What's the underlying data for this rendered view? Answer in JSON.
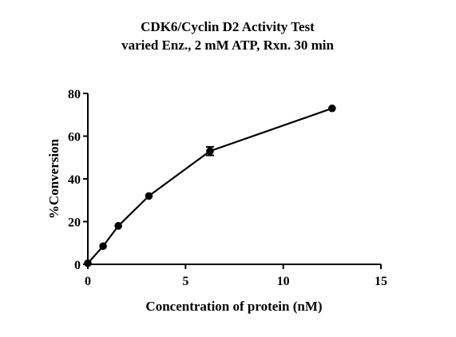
{
  "chart_data": {
    "type": "line",
    "title": "CDK6/Cyclin D2 Activity Test",
    "subtitle": "varied Enz., 2 mM ATP, Rxn. 30 min",
    "xlabel": "Concentration of protein (nM)",
    "ylabel": "%Conversion",
    "xlim": [
      0,
      15
    ],
    "ylim": [
      0,
      80
    ],
    "xticks": [
      "0",
      "5",
      "10",
      "15"
    ],
    "yticks": [
      "0",
      "20",
      "40",
      "60",
      "80"
    ],
    "grid": false,
    "series": [
      {
        "x": [
          0,
          0.78,
          1.56,
          3.125,
          6.25,
          12.5
        ],
        "y": [
          0.5,
          8.5,
          18,
          32,
          53,
          73
        ],
        "error": [
          0,
          0,
          0,
          0,
          2,
          0
        ]
      }
    ]
  }
}
